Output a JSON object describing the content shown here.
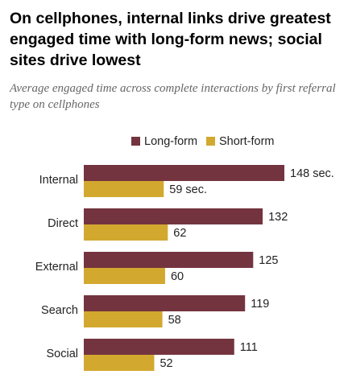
{
  "title": "On cellphones, internal links drive greatest engaged time with long-form news; social sites drive lowest",
  "subtitle": "Average engaged time across complete interactions by first referral type on cellphones",
  "colors": {
    "long_form": "#74343f",
    "short_form": "#d3a82f"
  },
  "chart_data": {
    "type": "bar",
    "orientation": "horizontal",
    "categories": [
      "Internal",
      "Direct",
      "External",
      "Search",
      "Social"
    ],
    "series": [
      {
        "name": "Long-form",
        "values": [
          148,
          132,
          125,
          119,
          111
        ],
        "labels": [
          "148 sec.",
          "132",
          "125",
          "119",
          "111"
        ]
      },
      {
        "name": "Short-form",
        "values": [
          59,
          62,
          60,
          58,
          52
        ],
        "labels": [
          "59 sec.",
          "62",
          "60",
          "58",
          "52"
        ]
      }
    ],
    "legend": "top",
    "grid": false,
    "xlim": [
      0,
      148
    ]
  }
}
